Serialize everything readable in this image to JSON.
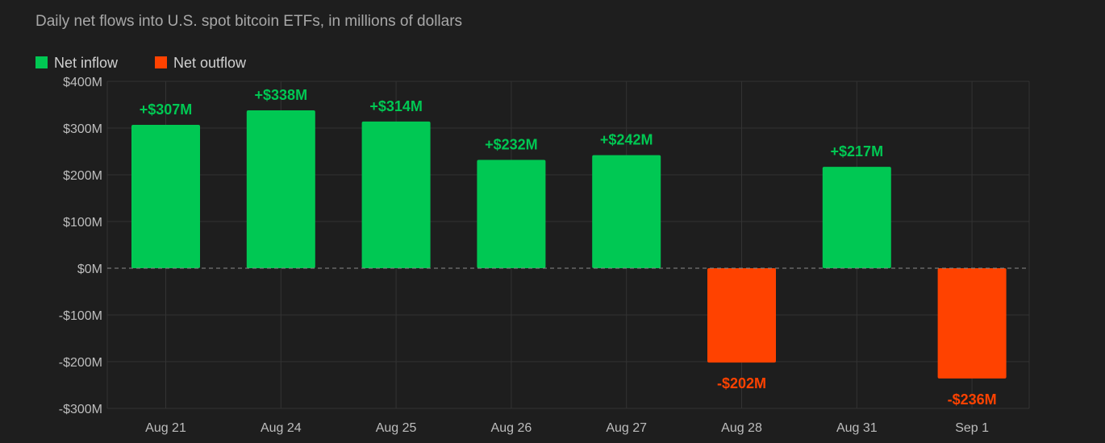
{
  "subtitle": "Daily net flows into U.S. spot bitcoin ETFs, in millions of dollars",
  "legend": {
    "inflow_label": "Net inflow",
    "outflow_label": "Net outflow"
  },
  "colors": {
    "inflow": "#00c853",
    "outflow": "#ff4200"
  },
  "chart_data": {
    "type": "bar",
    "categories": [
      "Aug 21",
      "Aug 24",
      "Aug 25",
      "Aug 26",
      "Aug 27",
      "Aug 28",
      "Aug 31",
      "Sep 1"
    ],
    "values": [
      307,
      338,
      314,
      232,
      242,
      -202,
      217,
      -236
    ],
    "data_labels": [
      "+$307M",
      "+$338M",
      "+$314M",
      "+$232M",
      "+$242M",
      "-$202M",
      "+$217M",
      "-$236M"
    ],
    "ylim": [
      -300,
      400
    ],
    "yticks": [
      400,
      300,
      200,
      100,
      0,
      -100,
      -200,
      -300
    ],
    "ytick_labels": [
      "$400M",
      "$300M",
      "$200M",
      "$100M",
      "$0M",
      "-$100M",
      "-$200M",
      "-$300M"
    ],
    "grid": true,
    "legend_position": "top-left",
    "series": [
      {
        "name": "Net inflow"
      },
      {
        "name": "Net outflow"
      }
    ]
  }
}
